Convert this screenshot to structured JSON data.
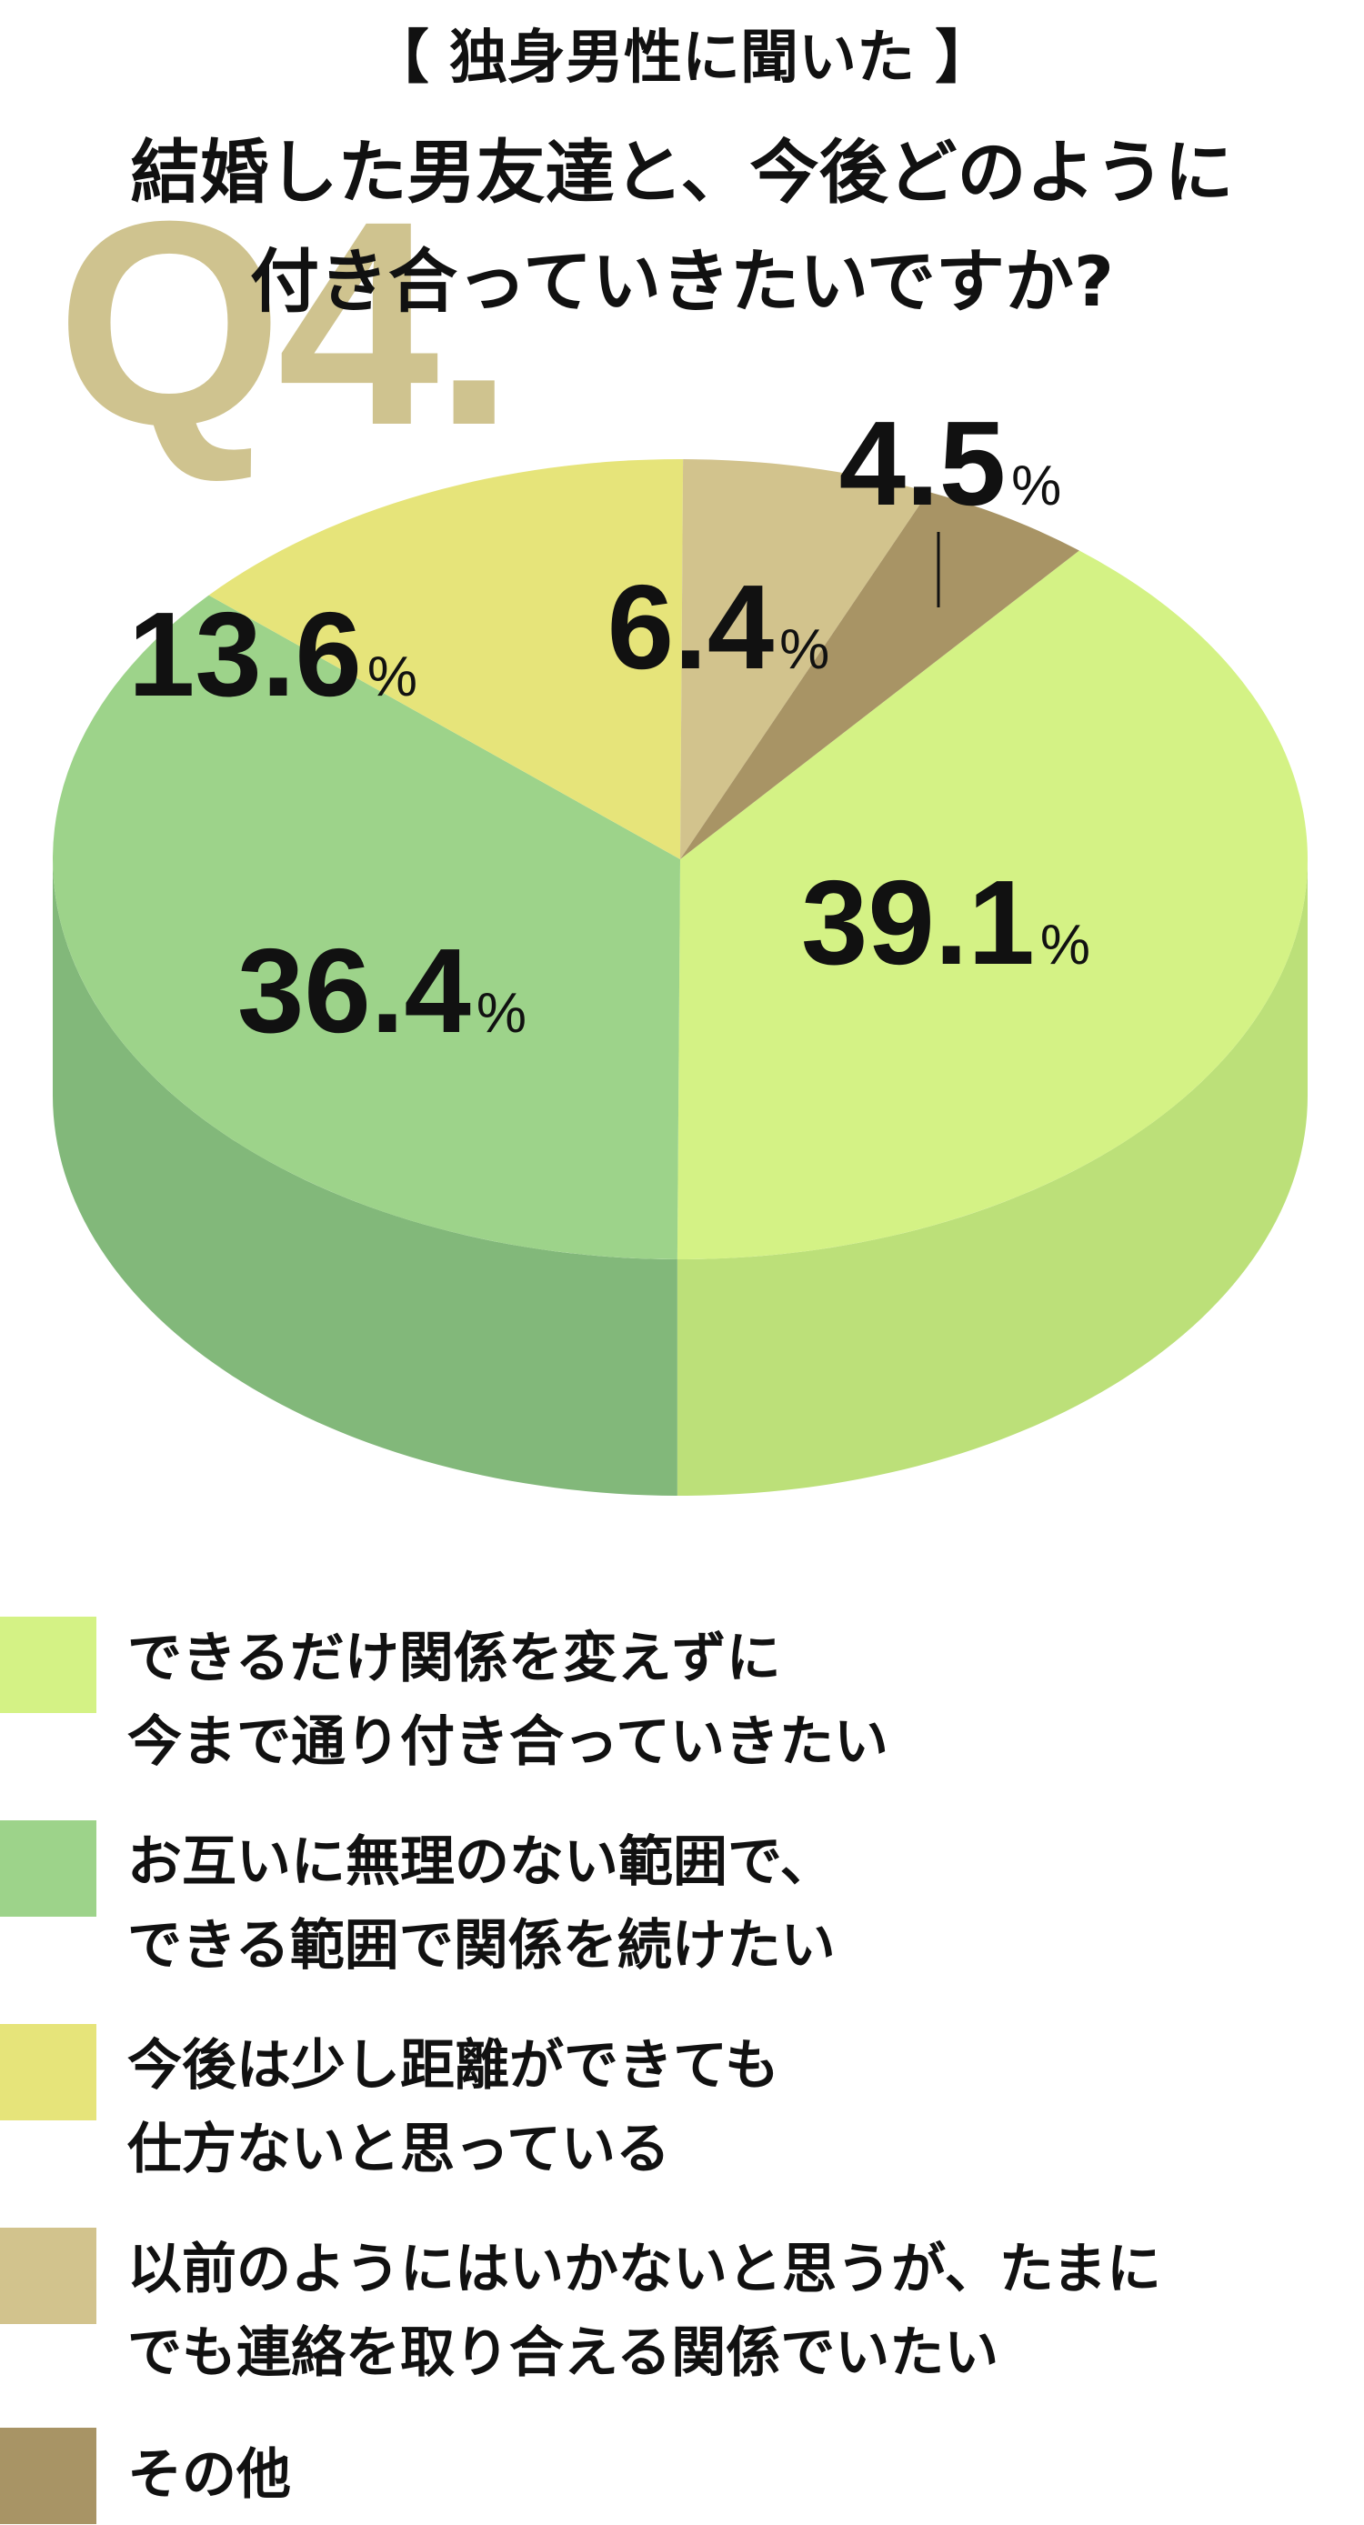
{
  "chart_data": {
    "type": "pie",
    "subtitle": "【 独身男性に聞いた 】",
    "title_lines": [
      "結婚した男友達と、今後どのように",
      "付き合っていきたいですか?"
    ],
    "question_mark": "Q4.",
    "unit": "%",
    "slices": [
      {
        "value": 39.1,
        "label_value": "39.1",
        "color": "#d4f285",
        "side_color": "#bce079",
        "legend_lines": [
          "できるだけ関係を変えずに",
          "今まで通り付き合っていきたい"
        ]
      },
      {
        "value": 36.4,
        "label_value": "36.4",
        "color": "#9dd38a",
        "side_color": "#82b87a",
        "legend_lines": [
          "お互いに無理のない範囲で、",
          "できる範囲で関係を続けたい"
        ]
      },
      {
        "value": 13.6,
        "label_value": "13.6",
        "color": "#e6e47a",
        "side_color": "#cfcd6a",
        "legend_lines": [
          "今後は少し距離ができても",
          "仕方ないと思っている"
        ]
      },
      {
        "value": 6.4,
        "label_value": "6.4",
        "color": "#d2c38d",
        "side_color": "#b9ab7a",
        "legend_lines": [
          "以前のようにはいかないと思うが、たまに",
          "でも連絡を取り合える関係でいたい"
        ]
      },
      {
        "value": 4.5,
        "label_value": "4.5",
        "color": "#a89465",
        "side_color": "#8f7d54",
        "legend_lines": [
          "その他"
        ]
      }
    ]
  },
  "colors": {
    "question_mark": "#cfc38f",
    "text": "#111111"
  }
}
